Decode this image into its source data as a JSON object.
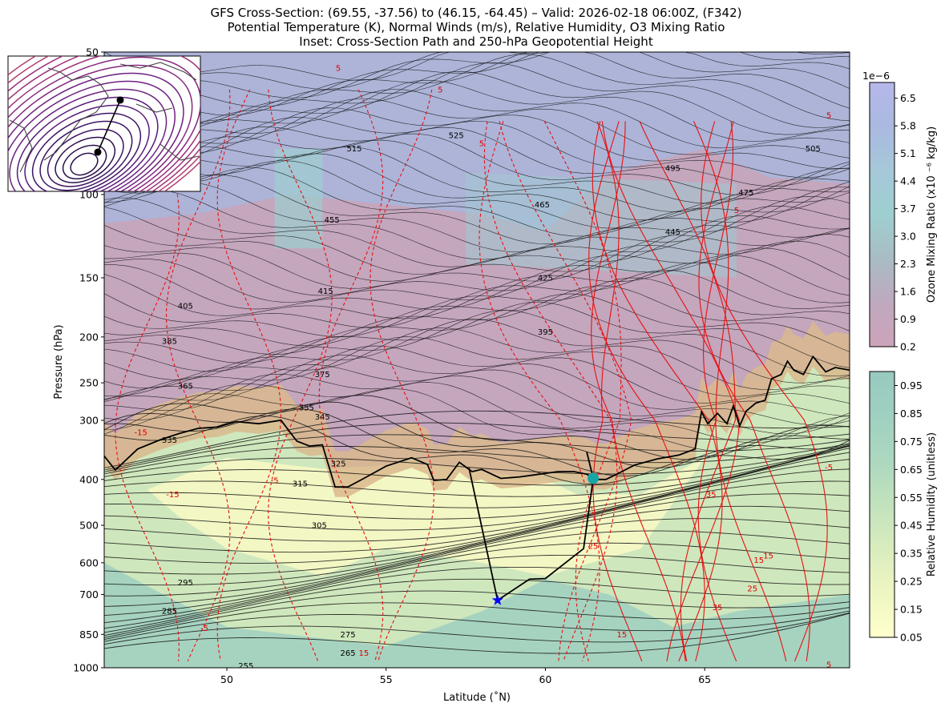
{
  "title": {
    "line1": "GFS Cross-Section: (69.55, -37.56) to (46.15, -64.45) – Valid: 2026-02-18 06:00Z, (F342)",
    "line2": "Potential Temperature (K), Normal Winds (m/s), Relative Humidity, O3 Mixing Ratio",
    "line3": "Inset: Cross-Section Path and 250-hPa Geopotential Height"
  },
  "axes": {
    "xlabel": "Latitude (˚N)",
    "ylabel": "Pressure (hPa)",
    "xlim": [
      46.15,
      69.55
    ],
    "ylim": [
      1000,
      50
    ],
    "yscale": "log",
    "xticks": [
      50,
      55,
      60,
      65
    ],
    "yticks": [
      1000,
      850,
      700,
      600,
      500,
      400,
      300,
      250,
      200,
      150,
      100,
      50
    ]
  },
  "colorbars": {
    "ozone": {
      "label": "Ozone Mixing Ratio (x10 ⁻⁶ kg/kg)",
      "offset_label": "1e−6",
      "ticks": [
        "0.2",
        "0.9",
        "1.6",
        "2.3",
        "3.0",
        "3.7",
        "4.4",
        "5.1",
        "5.8",
        "6.5"
      ],
      "range": [
        0.2,
        6.9
      ],
      "colors": [
        "#cda3b9",
        "#bfa9be",
        "#a9bcc4",
        "#9ecfd0",
        "#a6c8d9",
        "#aab9e0",
        "#b6b8ea"
      ]
    },
    "rh": {
      "label": "Relative Humidity (unitless)",
      "ticks": [
        "0.05",
        "0.15",
        "0.25",
        "0.35",
        "0.45",
        "0.55",
        "0.65",
        "0.75",
        "0.85",
        "0.95"
      ],
      "range": [
        0.05,
        1.0
      ],
      "colors": [
        "#ffffcc",
        "#eef6c2",
        "#d9ecbe",
        "#c1e2bd",
        "#acd8bf",
        "#9fd0c1",
        "#98c9bf"
      ]
    }
  },
  "chart_data": {
    "type": "cross-section",
    "theta_labels": [
      {
        "x": 54.0,
        "p": 80,
        "text": "515"
      },
      {
        "x": 57.2,
        "p": 75,
        "text": "525"
      },
      {
        "x": 68.4,
        "p": 80,
        "text": "505"
      },
      {
        "x": 64.0,
        "p": 88,
        "text": "495"
      },
      {
        "x": 66.3,
        "p": 99,
        "text": "475"
      },
      {
        "x": 59.9,
        "p": 105,
        "text": "465"
      },
      {
        "x": 53.3,
        "p": 113,
        "text": "455"
      },
      {
        "x": 64.0,
        "p": 120,
        "text": "445"
      },
      {
        "x": 60.0,
        "p": 150,
        "text": "425"
      },
      {
        "x": 53.1,
        "p": 160,
        "text": "415"
      },
      {
        "x": 48.7,
        "p": 172,
        "text": "405"
      },
      {
        "x": 60.0,
        "p": 195,
        "text": "395"
      },
      {
        "x": 48.2,
        "p": 204,
        "text": "385"
      },
      {
        "x": 53.0,
        "p": 240,
        "text": "375"
      },
      {
        "x": 48.7,
        "p": 254,
        "text": "365"
      },
      {
        "x": 52.5,
        "p": 282,
        "text": "355"
      },
      {
        "x": 53.0,
        "p": 295,
        "text": "345"
      },
      {
        "x": 48.2,
        "p": 330,
        "text": "335"
      },
      {
        "x": 53.5,
        "p": 370,
        "text": "325"
      },
      {
        "x": 52.3,
        "p": 408,
        "text": "315"
      },
      {
        "x": 52.9,
        "p": 500,
        "text": "305"
      },
      {
        "x": 48.7,
        "p": 660,
        "text": "295"
      },
      {
        "x": 48.2,
        "p": 758,
        "text": "285"
      },
      {
        "x": 53.8,
        "p": 850,
        "text": "275"
      },
      {
        "x": 53.8,
        "p": 930,
        "text": "265"
      },
      {
        "x": 50.6,
        "p": 990,
        "text": "255"
      }
    ],
    "wind_labels": [
      {
        "x": 53.5,
        "p": 54,
        "text": "5"
      },
      {
        "x": 56.7,
        "p": 60,
        "text": "5"
      },
      {
        "x": 58.0,
        "p": 78,
        "text": "5"
      },
      {
        "x": 66.0,
        "p": 108,
        "text": "5"
      },
      {
        "x": 68.9,
        "p": 68,
        "text": "5"
      },
      {
        "x": 47.3,
        "p": 318,
        "text": "-15"
      },
      {
        "x": 51.5,
        "p": 402,
        "text": "-5"
      },
      {
        "x": 48.3,
        "p": 430,
        "text": "-15"
      },
      {
        "x": 65.2,
        "p": 430,
        "text": "35"
      },
      {
        "x": 68.9,
        "p": 377,
        "text": "-5"
      },
      {
        "x": 61.5,
        "p": 553,
        "text": "25"
      },
      {
        "x": 66.7,
        "p": 592,
        "text": "15"
      },
      {
        "x": 67.0,
        "p": 580,
        "text": "15"
      },
      {
        "x": 66.5,
        "p": 680,
        "text": "25"
      },
      {
        "x": 65.4,
        "p": 745,
        "text": "35"
      },
      {
        "x": 62.4,
        "p": 850,
        "text": "15"
      },
      {
        "x": 49.3,
        "p": 825,
        "text": "-5"
      },
      {
        "x": 54.3,
        "p": 930,
        "text": "15"
      },
      {
        "x": 68.9,
        "p": 985,
        "text": "5"
      }
    ],
    "dynamic_tropopause": [
      [
        46.15,
        357
      ],
      [
        46.5,
        382
      ],
      [
        47.2,
        345
      ],
      [
        47.9,
        330
      ],
      [
        48.5,
        320
      ],
      [
        49.1,
        312
      ],
      [
        49.7,
        310
      ],
      [
        50.3,
        302
      ],
      [
        51.0,
        305
      ],
      [
        51.7,
        300
      ],
      [
        52.2,
        332
      ],
      [
        52.6,
        340
      ],
      [
        53.0,
        338
      ],
      [
        53.4,
        415
      ],
      [
        53.8,
        415
      ],
      [
        54.3,
        398
      ],
      [
        55.0,
        375
      ],
      [
        55.8,
        360
      ],
      [
        56.3,
        372
      ],
      [
        56.5,
        402
      ],
      [
        56.9,
        400
      ],
      [
        57.3,
        368
      ],
      [
        57.7,
        385
      ],
      [
        58.0,
        381
      ],
      [
        58.6,
        398
      ],
      [
        59.2,
        395
      ],
      [
        59.8,
        390
      ],
      [
        60.4,
        385
      ],
      [
        60.9,
        385
      ],
      [
        61.3,
        390
      ],
      [
        61.6,
        400
      ],
      [
        61.9,
        400
      ],
      [
        62.3,
        388
      ],
      [
        62.8,
        373
      ],
      [
        63.5,
        362
      ],
      [
        64.2,
        355
      ],
      [
        64.7,
        345
      ],
      [
        64.9,
        288
      ],
      [
        65.1,
        305
      ],
      [
        65.4,
        290
      ],
      [
        65.7,
        305
      ],
      [
        65.9,
        280
      ],
      [
        66.1,
        308
      ],
      [
        66.3,
        287
      ],
      [
        66.6,
        276
      ],
      [
        66.9,
        272
      ],
      [
        67.1,
        245
      ],
      [
        67.4,
        240
      ],
      [
        67.6,
        225
      ],
      [
        67.8,
        235
      ],
      [
        68.1,
        240
      ],
      [
        68.4,
        220
      ],
      [
        68.8,
        237
      ],
      [
        69.1,
        232
      ],
      [
        69.55,
        235
      ]
    ],
    "markers": [
      {
        "x": 58.5,
        "p": 720,
        "shape": "star",
        "color": "#0000ff"
      },
      {
        "x": 61.5,
        "p": 398,
        "shape": "circle",
        "color": "#17a6a6"
      }
    ],
    "marker_stems": [
      [
        [
          57.6,
          378
        ],
        [
          58.5,
          720
        ]
      ],
      [
        [
          61.5,
          398
        ],
        [
          61.3,
          350
        ]
      ],
      [
        [
          61.5,
          398
        ],
        [
          61.2,
          560
        ],
        [
          60.0,
          648
        ],
        [
          59.5,
          650
        ],
        [
          58.5,
          720
        ]
      ]
    ]
  }
}
